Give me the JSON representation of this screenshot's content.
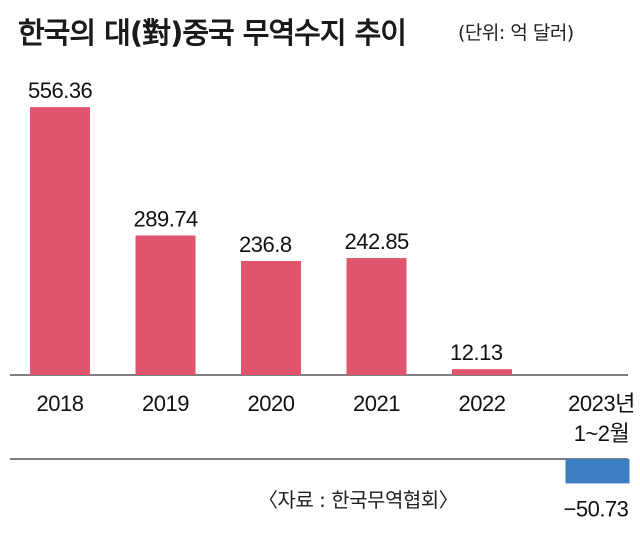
{
  "header": {
    "title": "한국의 대(對)중국 무역수지 추이",
    "unit": "(단위: 억 달러)"
  },
  "source": "〈자료 : 한국무역협회〉",
  "colors": {
    "positive": "#e0546d",
    "negative": "#3d7fc2",
    "axis": "#333333"
  },
  "chart_data": {
    "type": "bar",
    "title": "한국의 대(對)중국 무역수지 추이",
    "unit": "(단위: 억 달러)",
    "categories": [
      "2018",
      "2019",
      "2020",
      "2021",
      "2022",
      "2023년 1~2월"
    ],
    "category_lines": [
      [
        "2018"
      ],
      [
        "2019"
      ],
      [
        "2020"
      ],
      [
        "2021"
      ],
      [
        "2022"
      ],
      [
        "2023년",
        "1~2월"
      ]
    ],
    "values": [
      556.36,
      289.74,
      236.8,
      242.85,
      12.13,
      -50.73
    ],
    "value_labels": [
      "556.36",
      "289.74",
      "236.8",
      "242.85",
      "12.13",
      "−50.73"
    ],
    "xlabel": "",
    "ylabel": "",
    "grid": false,
    "legend": "none"
  }
}
